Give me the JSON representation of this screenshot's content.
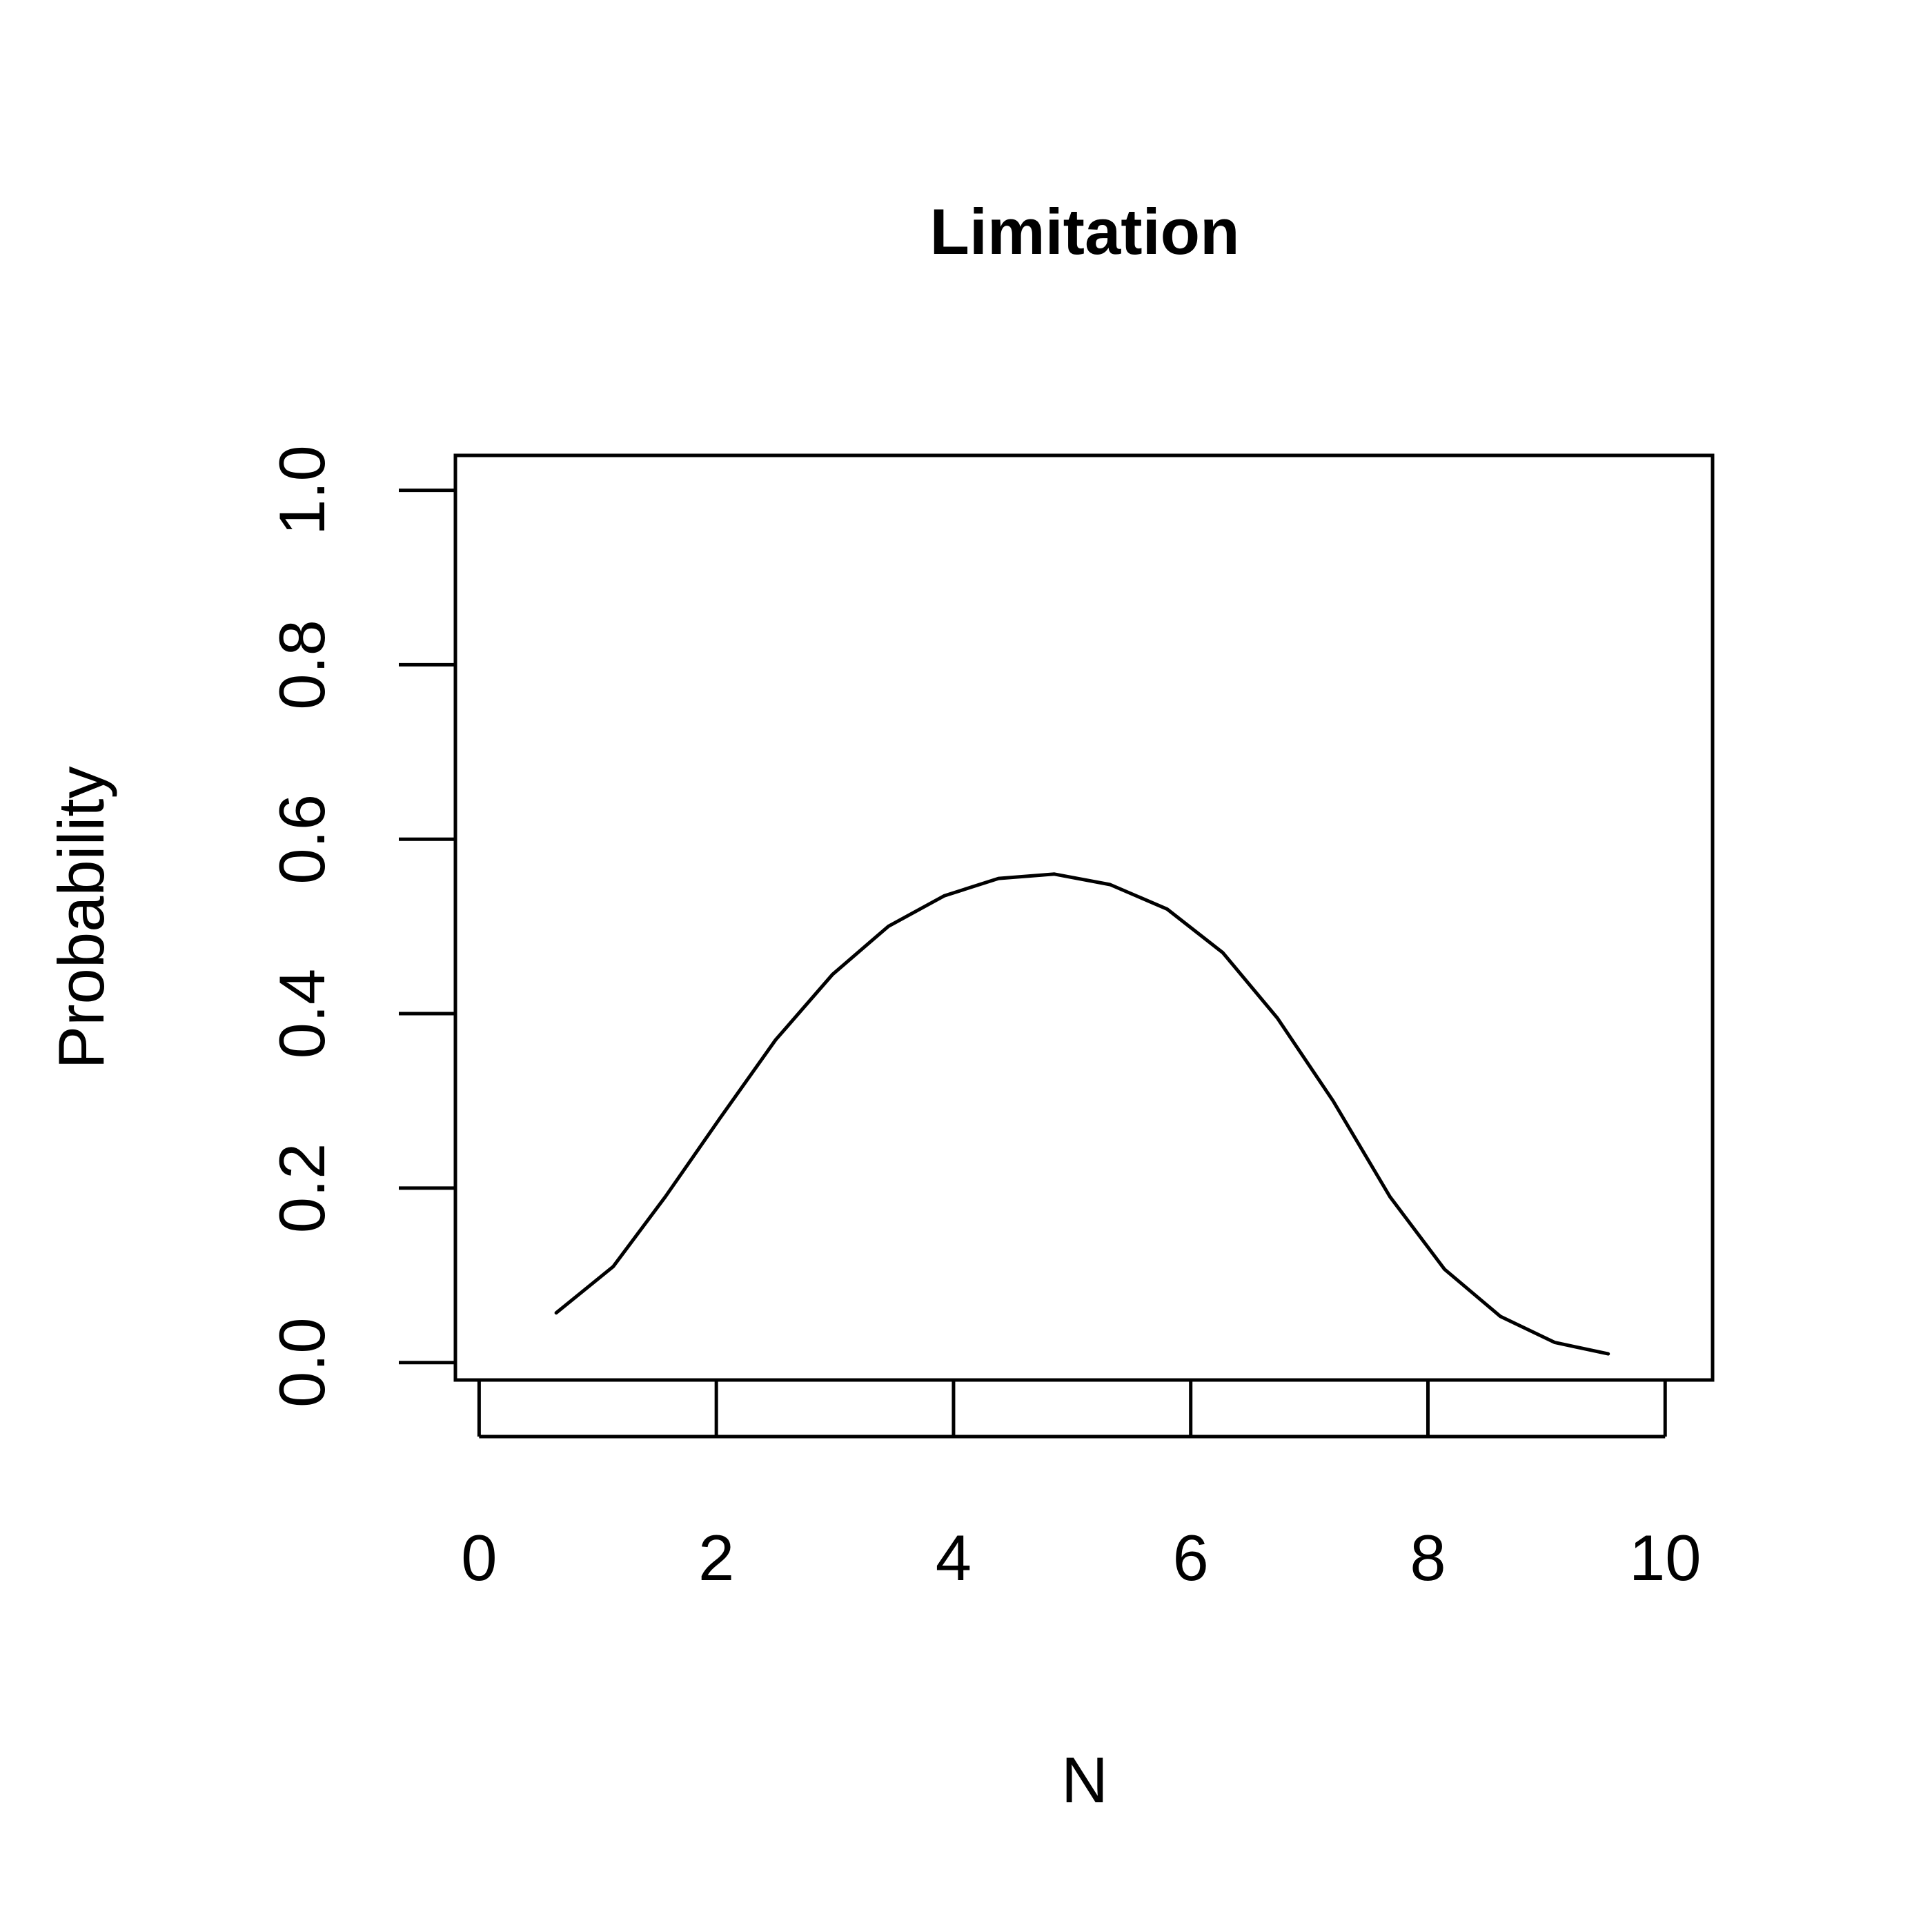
{
  "chart_data": {
    "type": "line",
    "title": "Limitation",
    "xlabel": "N",
    "ylabel": "Probability",
    "xlim": [
      -0.2,
      10.4
    ],
    "ylim": [
      -0.02,
      1.04
    ],
    "x_ticks": [
      0,
      2,
      4,
      6,
      8,
      10
    ],
    "x_tick_labels": [
      "0",
      "2",
      "4",
      "6",
      "8",
      "10"
    ],
    "y_ticks": [
      0.0,
      0.2,
      0.4,
      0.6,
      0.8,
      1.0
    ],
    "y_tick_labels": [
      "0.0",
      "0.2",
      "0.4",
      "0.6",
      "0.8",
      "1.0"
    ],
    "grid": false,
    "legend": "none",
    "line_color": "#000000",
    "series": [
      {
        "x": [
          0.65,
          1.13,
          1.57,
          2.03,
          2.5,
          2.98,
          3.45,
          3.92,
          4.38,
          4.85,
          5.32,
          5.8,
          6.27,
          6.73,
          7.2,
          7.68,
          8.14,
          8.61,
          9.07,
          9.52
        ],
        "values": [
          0.057,
          0.11,
          0.19,
          0.28,
          0.37,
          0.445,
          0.5,
          0.535,
          0.555,
          0.56,
          0.548,
          0.52,
          0.47,
          0.395,
          0.3,
          0.19,
          0.107,
          0.053,
          0.023,
          0.01
        ]
      }
    ]
  }
}
